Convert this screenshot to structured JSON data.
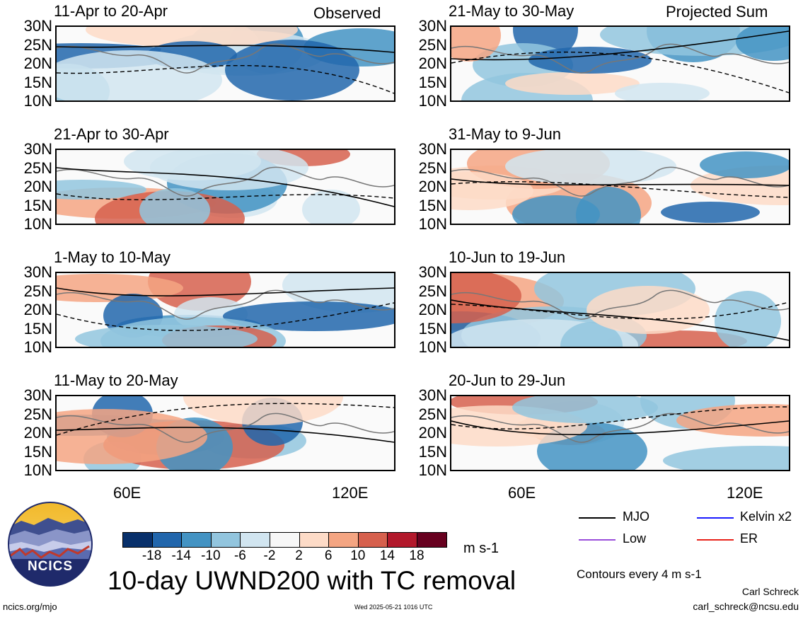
{
  "labels": {
    "observed": "Observed",
    "projected": "Projected Sum"
  },
  "panels": [
    {
      "date": "11-Apr to 20-Apr",
      "col": 0,
      "row": 0
    },
    {
      "date": "21-Apr to 30-Apr",
      "col": 0,
      "row": 1
    },
    {
      "date": "1-May to 10-May",
      "col": 0,
      "row": 2
    },
    {
      "date": "11-May to 20-May",
      "col": 0,
      "row": 3
    },
    {
      "date": "21-May to 30-May",
      "col": 1,
      "row": 0
    },
    {
      "date": "31-May to 9-Jun",
      "col": 1,
      "row": 1
    },
    {
      "date": "10-Jun to 19-Jun",
      "col": 1,
      "row": 2
    },
    {
      "date": "20-Jun to 29-Jun",
      "col": 1,
      "row": 3
    }
  ],
  "lat_ticks": [
    "30N",
    "25N",
    "20N",
    "15N",
    "10N"
  ],
  "lon_ticks": [
    "60E",
    "120E"
  ],
  "colorbar": {
    "colors": [
      "#08306b",
      "#2166ac",
      "#4393c3",
      "#92c5de",
      "#d1e5f0",
      "#f7f7f7",
      "#fddbc7",
      "#f4a582",
      "#d6604d",
      "#b2182b",
      "#67001f"
    ],
    "ticks": [
      "-18",
      "-14",
      "-10",
      "-6",
      "-2",
      "2",
      "6",
      "10",
      "14",
      "18"
    ],
    "units": "m s-1"
  },
  "title": "10-day UWND200 with TC removal",
  "legend": [
    {
      "label": "MJO",
      "color": "#000000"
    },
    {
      "label": "Kelvin x2",
      "color": "#1a1aff"
    },
    {
      "label": "Low",
      "color": "#9a4ddb"
    },
    {
      "label": "ER",
      "color": "#e8221a"
    }
  ],
  "contour_note": "Contours every 4 m s-1",
  "author": "Carl Schreck",
  "email": "carl_schreck@ncsu.edu",
  "url": "ncics.org/mjo",
  "timestamp": "Wed 2025-05-21 1016 UTC",
  "logo_text": "NCICS"
}
